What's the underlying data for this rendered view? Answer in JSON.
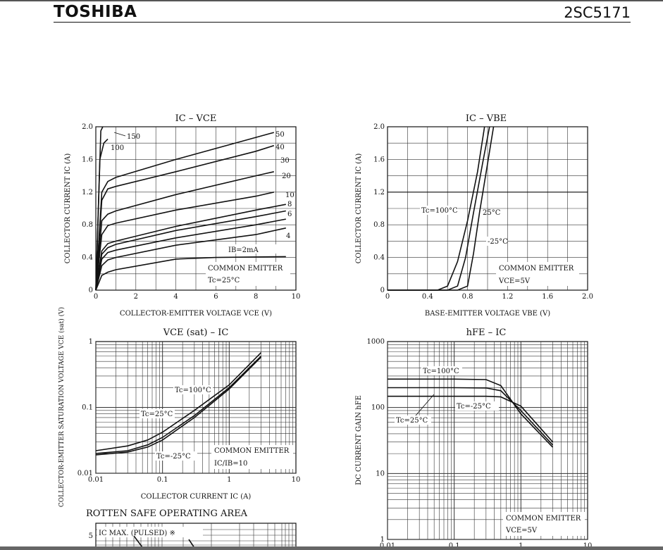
{
  "header": {
    "brand": "TOSHIBA",
    "part_number": "2SC5171"
  },
  "chart_data": [
    {
      "type": "line",
      "title": "IC – VCE",
      "xlabel": "COLLECTOR-EMITTER VOLTAGE VCE (V)",
      "ylabel": "COLLECTOR CURRENT IC (A)",
      "xlim": [
        0,
        10
      ],
      "ylim": [
        0,
        2.0
      ],
      "x_ticks": [
        "0",
        "2",
        "4",
        "6",
        "8",
        "10"
      ],
      "y_ticks": [
        "0",
        "0.4",
        "0.8",
        "1.2",
        "1.6",
        "2.0"
      ],
      "annotations": [
        "COMMON EMITTER",
        "Tc=25°C",
        "IB=2mA"
      ],
      "series": [
        {
          "name": "150",
          "points": [
            [
              0,
              0
            ],
            [
              0.25,
              1.95
            ],
            [
              0.35,
              2.0
            ]
          ]
        },
        {
          "name": "100",
          "points": [
            [
              0,
              0
            ],
            [
              0.2,
              1.6
            ],
            [
              0.4,
              1.8
            ],
            [
              0.6,
              1.85
            ]
          ]
        },
        {
          "name": "50",
          "points": [
            [
              0,
              0
            ],
            [
              0.3,
              1.2
            ],
            [
              0.6,
              1.33
            ],
            [
              1,
              1.38
            ],
            [
              4,
              1.6
            ],
            [
              8,
              1.87
            ],
            [
              8.9,
              1.93
            ]
          ]
        },
        {
          "name": "40",
          "points": [
            [
              0,
              0
            ],
            [
              0.3,
              1.1
            ],
            [
              0.6,
              1.24
            ],
            [
              1,
              1.27
            ],
            [
              4,
              1.45
            ],
            [
              8,
              1.7
            ],
            [
              8.9,
              1.77
            ]
          ]
        },
        {
          "name": "30",
          "points": [
            [
              0,
              0
            ],
            [
              0.3,
              0.85
            ],
            [
              0.6,
              0.93
            ],
            [
              1,
              0.97
            ],
            [
              4,
              1.17
            ],
            [
              8,
              1.4
            ],
            [
              8.9,
              1.45
            ]
          ]
        },
        {
          "name": "20",
          "points": [
            [
              0,
              0
            ],
            [
              0.3,
              0.68
            ],
            [
              0.6,
              0.79
            ],
            [
              1,
              0.82
            ],
            [
              4,
              0.98
            ],
            [
              8,
              1.15
            ],
            [
              8.9,
              1.2
            ]
          ]
        },
        {
          "name": "10",
          "points": [
            [
              0,
              0
            ],
            [
              0.3,
              0.48
            ],
            [
              0.6,
              0.57
            ],
            [
              1,
              0.6
            ],
            [
              4,
              0.78
            ],
            [
              8,
              0.98
            ],
            [
              9.5,
              1.05
            ]
          ]
        },
        {
          "name": "8",
          "points": [
            [
              0,
              0
            ],
            [
              0.3,
              0.44
            ],
            [
              0.6,
              0.52
            ],
            [
              1,
              0.56
            ],
            [
              4,
              0.73
            ],
            [
              8,
              0.9
            ],
            [
              9.5,
              0.97
            ]
          ]
        },
        {
          "name": "6",
          "points": [
            [
              0,
              0
            ],
            [
              0.3,
              0.38
            ],
            [
              0.6,
              0.46
            ],
            [
              1,
              0.49
            ],
            [
              4,
              0.64
            ],
            [
              8,
              0.8
            ],
            [
              9.5,
              0.87
            ]
          ]
        },
        {
          "name": "4",
          "points": [
            [
              0,
              0
            ],
            [
              0.3,
              0.3
            ],
            [
              0.6,
              0.37
            ],
            [
              1,
              0.4
            ],
            [
              4,
              0.55
            ],
            [
              8,
              0.68
            ],
            [
              9.5,
              0.76
            ]
          ]
        },
        {
          "name": "2",
          "points": [
            [
              0,
              0
            ],
            [
              0.3,
              0.18
            ],
            [
              0.6,
              0.22
            ],
            [
              1,
              0.25
            ],
            [
              4,
              0.38
            ],
            [
              6,
              0.4
            ],
            [
              9.5,
              0.41
            ]
          ]
        }
      ]
    },
    {
      "type": "line",
      "title": "IC – VBE",
      "xlabel": "BASE-EMITTER VOLTAGE VBE (V)",
      "ylabel": "COLLECTOR CURRENT IC (A)",
      "xlim": [
        0,
        2.0
      ],
      "ylim": [
        0,
        2.0
      ],
      "x_ticks": [
        "0",
        "0.4",
        "0.8",
        "1.2",
        "1.6",
        "2.0"
      ],
      "y_ticks": [
        "0",
        "0.4",
        "0.8",
        "1.2",
        "1.6",
        "2.0"
      ],
      "annotations": [
        "COMMON EMITTER",
        "VCE=5V"
      ],
      "series": [
        {
          "name": "Tc=100°C",
          "points": [
            [
              0,
              0
            ],
            [
              0.5,
              0.0
            ],
            [
              0.6,
              0.05
            ],
            [
              0.7,
              0.35
            ],
            [
              0.8,
              0.85
            ],
            [
              0.9,
              1.45
            ],
            [
              0.97,
              2.0
            ]
          ]
        },
        {
          "name": "25°C",
          "points": [
            [
              0,
              0
            ],
            [
              0.6,
              0.0
            ],
            [
              0.7,
              0.05
            ],
            [
              0.78,
              0.4
            ],
            [
              0.86,
              0.95
            ],
            [
              0.95,
              1.55
            ],
            [
              1.02,
              2.0
            ]
          ]
        },
        {
          "name": "-25°C",
          "points": [
            [
              0,
              0
            ],
            [
              0.7,
              0.0
            ],
            [
              0.8,
              0.05
            ],
            [
              0.86,
              0.45
            ],
            [
              0.92,
              0.95
            ],
            [
              1.0,
              1.55
            ],
            [
              1.06,
              2.0
            ]
          ]
        }
      ]
    },
    {
      "type": "line",
      "title": "VCE (sat) – IC",
      "xlabel": "COLLECTOR CURRENT IC (A)",
      "ylabel": "COLLECTOR-EMITTER SATURATION VOLTAGE VCE (sat) (V)",
      "xlim": [
        0.01,
        10
      ],
      "ylim": [
        0.01,
        1
      ],
      "xscale": "log",
      "yscale": "log",
      "x_ticks": [
        "0.01",
        "0.1",
        "1",
        "10"
      ],
      "y_ticks": [
        "0.01",
        "0.1",
        "1"
      ],
      "annotations": [
        "COMMON EMITTER",
        "IC/IB=10"
      ],
      "series": [
        {
          "name": "Tc=100°C",
          "points": [
            [
              0.01,
              0.022
            ],
            [
              0.03,
              0.026
            ],
            [
              0.06,
              0.032
            ],
            [
              0.1,
              0.042
            ],
            [
              0.3,
              0.09
            ],
            [
              1,
              0.22
            ],
            [
              3,
              0.68
            ]
          ]
        },
        {
          "name": "Tc=25°C",
          "points": [
            [
              0.01,
              0.02
            ],
            [
              0.03,
              0.022
            ],
            [
              0.06,
              0.027
            ],
            [
              0.1,
              0.035
            ],
            [
              0.3,
              0.075
            ],
            [
              1,
              0.2
            ],
            [
              3,
              0.6
            ]
          ]
        },
        {
          "name": "Tc=-25°C",
          "points": [
            [
              0.01,
              0.019
            ],
            [
              0.03,
              0.021
            ],
            [
              0.06,
              0.025
            ],
            [
              0.1,
              0.032
            ],
            [
              0.3,
              0.07
            ],
            [
              1,
              0.19
            ],
            [
              3,
              0.58
            ]
          ]
        }
      ]
    },
    {
      "type": "line",
      "title": "hFE – IC",
      "xlabel": "",
      "ylabel": "DC CURRENT GAIN hFE",
      "xlim": [
        0.01,
        10
      ],
      "ylim": [
        1,
        1000
      ],
      "xscale": "log",
      "yscale": "log",
      "x_ticks": [
        "0.01",
        "0.1",
        "1",
        "10"
      ],
      "y_ticks": [
        "1",
        "10",
        "100",
        "1000"
      ],
      "annotations": [
        "COMMON EMITTER",
        "VCE=5V"
      ],
      "series": [
        {
          "name": "Tc=100°C",
          "points": [
            [
              0.01,
              270
            ],
            [
              0.1,
              270
            ],
            [
              0.3,
              265
            ],
            [
              0.5,
              215
            ],
            [
              1,
              80
            ],
            [
              3,
              25
            ]
          ]
        },
        {
          "name": "Tc=25°C",
          "points": [
            [
              0.01,
              200
            ],
            [
              0.1,
              200
            ],
            [
              0.3,
              198
            ],
            [
              0.5,
              180
            ],
            [
              1,
              90
            ],
            [
              3,
              27
            ]
          ]
        },
        {
          "name": "Tc=-25°C",
          "points": [
            [
              0.01,
              148
            ],
            [
              0.1,
              148
            ],
            [
              0.3,
              148
            ],
            [
              0.5,
              145
            ],
            [
              1,
              105
            ],
            [
              3,
              30
            ]
          ]
        }
      ]
    }
  ],
  "soa": {
    "title": "ROTTEN SAFE OPERATING AREA",
    "label": "IC MAX. (PULSED) ※",
    "y_tick": "5"
  }
}
